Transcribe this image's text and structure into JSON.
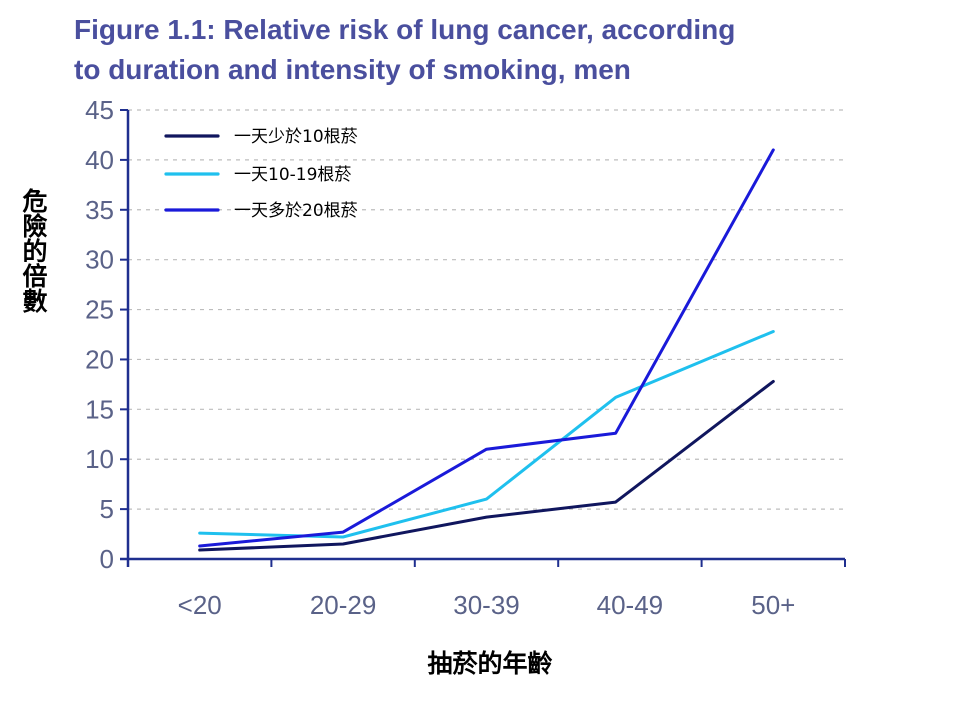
{
  "chart_data": {
    "type": "line",
    "title_line1": "Figure 1.1: Relative risk of lung cancer, according",
    "title_line2": "to duration and intensity of smoking, men",
    "xlabel": "抽菸的年齡",
    "ylabel": "危險的倍數",
    "categories": [
      "<20",
      "20-29",
      "30-39",
      "40-49",
      "50+"
    ],
    "ylim": [
      0,
      45
    ],
    "yticks": [
      "0",
      "5",
      "10",
      "15",
      "20",
      "25",
      "30",
      "35",
      "40",
      "45"
    ],
    "grid": "horizontal dashed",
    "legend_position": "top-left",
    "series": [
      {
        "name": "一天少於10根菸",
        "color": "#10165e",
        "x": [
          0.0,
          1.0,
          2.0,
          2.9,
          4.0
        ],
        "values": [
          0.9,
          1.5,
          4.2,
          5.7,
          17.8
        ]
      },
      {
        "name": "一天10-19根菸",
        "color": "#1fc0ee",
        "x": [
          0.0,
          1.0,
          2.0,
          2.9,
          4.0
        ],
        "values": [
          2.6,
          2.2,
          6.0,
          16.2,
          22.8
        ]
      },
      {
        "name": "一天多於20根菸",
        "color": "#1a1ad9",
        "x": [
          0.0,
          1.0,
          2.0,
          2.9,
          4.0
        ],
        "values": [
          1.3,
          2.7,
          11.0,
          12.6,
          41.0
        ]
      }
    ]
  }
}
